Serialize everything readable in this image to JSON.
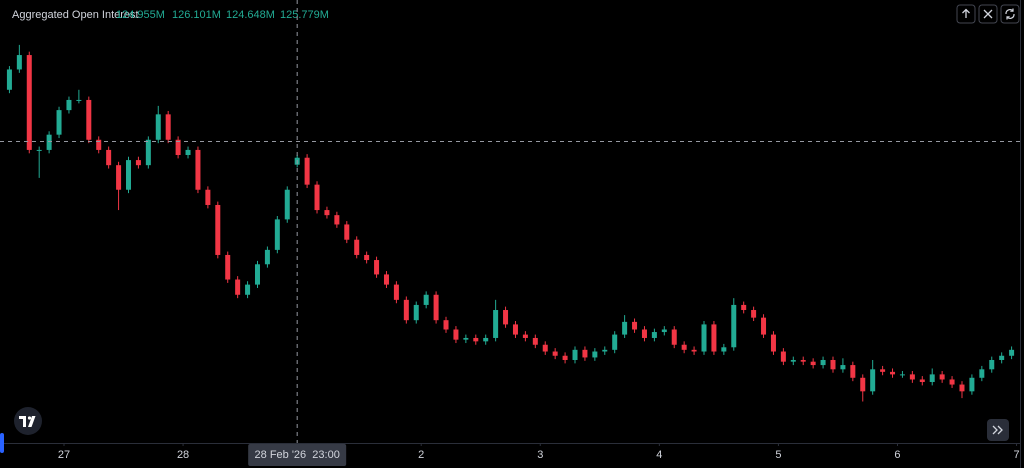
{
  "chart_data": {
    "type": "candlestick",
    "title": "Aggregated Open Interest",
    "readout_labels": [
      "124.955M",
      "126.101M",
      "124.648M",
      "125.779M"
    ],
    "up_color": "#22ab94",
    "down_color": "#f23645",
    "x": [
      13,
      15,
      17,
      19,
      21,
      23,
      25,
      27,
      29,
      31,
      33,
      35,
      37,
      39,
      41,
      43,
      45,
      47,
      49,
      51,
      53,
      55,
      57,
      59,
      61,
      63,
      65,
      67,
      69,
      71,
      73,
      75,
      77,
      79,
      81,
      83,
      85,
      87,
      89,
      91,
      93,
      95,
      97,
      99,
      101,
      103,
      105,
      107,
      109,
      111,
      113,
      115,
      117,
      119,
      121,
      123,
      125,
      127,
      129,
      131,
      133,
      135,
      137,
      139,
      141,
      143,
      145,
      147,
      149,
      151,
      153,
      155,
      157,
      159,
      161,
      163,
      165,
      167,
      169,
      171,
      173,
      175,
      177,
      179,
      181,
      183,
      185,
      187,
      189,
      191,
      193,
      195,
      197,
      199,
      201,
      203,
      205,
      207,
      209,
      211,
      213,
      215
    ],
    "open": [
      133.8,
      136.2,
      137.9,
      126.7,
      126.7,
      128.5,
      131.4,
      132.6,
      132.6,
      127.9,
      126.7,
      124.9,
      122.0,
      125.5,
      124.9,
      127.9,
      130.9,
      127.9,
      126.1,
      126.7,
      122.0,
      120.2,
      114.3,
      111.4,
      109.6,
      110.8,
      113.2,
      114.9,
      118.5,
      124.955,
      125.779,
      122.6,
      119.6,
      119.0,
      117.9,
      116.1,
      114.3,
      113.7,
      112.0,
      110.8,
      109.0,
      106.6,
      108.4,
      109.6,
      106.6,
      105.5,
      104.3,
      104.5,
      104.1,
      104.5,
      107.8,
      106.1,
      104.9,
      104.5,
      103.7,
      102.9,
      102.4,
      101.9,
      103.1,
      102.2,
      102.9,
      103.1,
      104.9,
      106.4,
      105.5,
      104.5,
      105.2,
      105.5,
      103.7,
      103.1,
      102.9,
      106.1,
      102.9,
      103.4,
      108.4,
      107.8,
      106.9,
      104.9,
      102.9,
      101.7,
      101.9,
      101.7,
      101.3,
      101.9,
      100.8,
      101.3,
      99.8,
      98.2,
      100.8,
      100.5,
      100.2,
      100.2,
      99.6,
      99.3,
      100.2,
      99.6,
      99.0,
      98.2,
      99.8,
      100.8,
      101.9,
      102.4
    ],
    "high": [
      136.6,
      139.1,
      138.3,
      127.1,
      128.9,
      131.8,
      133.0,
      133.8,
      133.0,
      128.3,
      127.1,
      125.3,
      125.9,
      125.9,
      128.3,
      131.9,
      131.3,
      128.3,
      127.1,
      127.1,
      122.4,
      120.6,
      114.7,
      111.8,
      111.2,
      113.6,
      115.3,
      118.9,
      122.4,
      126.101,
      126.2,
      123.0,
      120.0,
      119.4,
      118.3,
      116.5,
      114.7,
      114.1,
      112.4,
      111.2,
      109.4,
      108.8,
      110.0,
      110.0,
      107.0,
      105.9,
      104.9,
      104.9,
      104.9,
      109.0,
      108.2,
      106.5,
      105.3,
      104.9,
      104.1,
      103.3,
      102.8,
      103.5,
      103.5,
      103.3,
      103.5,
      105.3,
      107.2,
      106.8,
      105.9,
      105.6,
      105.9,
      105.9,
      104.1,
      103.5,
      106.5,
      106.5,
      103.8,
      109.2,
      108.8,
      108.2,
      107.3,
      105.3,
      103.3,
      102.3,
      102.3,
      102.1,
      102.3,
      102.3,
      102.1,
      101.7,
      100.2,
      101.9,
      101.2,
      100.9,
      100.6,
      100.6,
      100.0,
      100.9,
      100.6,
      100.0,
      99.4,
      100.2,
      101.2,
      102.3,
      102.8,
      103.5
    ],
    "low": [
      133.4,
      135.8,
      126.3,
      123.4,
      126.3,
      128.1,
      131.0,
      132.2,
      127.5,
      126.3,
      124.5,
      119.6,
      121.6,
      124.5,
      124.5,
      127.5,
      127.5,
      125.7,
      125.7,
      121.6,
      119.8,
      113.9,
      111.0,
      109.2,
      109.2,
      110.4,
      112.8,
      114.5,
      118.1,
      124.648,
      122.2,
      119.2,
      118.6,
      117.5,
      115.7,
      113.9,
      113.3,
      111.6,
      110.4,
      108.6,
      106.2,
      106.2,
      108.0,
      106.2,
      105.1,
      103.9,
      103.9,
      103.7,
      103.7,
      104.1,
      105.7,
      104.5,
      104.1,
      103.3,
      102.5,
      102.0,
      101.5,
      101.5,
      101.8,
      101.8,
      102.5,
      102.7,
      104.5,
      105.1,
      104.1,
      104.1,
      104.8,
      103.3,
      102.7,
      102.5,
      102.5,
      102.5,
      102.5,
      103.0,
      107.4,
      106.5,
      104.5,
      102.5,
      101.3,
      101.3,
      101.3,
      100.9,
      100.9,
      100.4,
      100.4,
      99.4,
      97.0,
      97.8,
      100.1,
      99.8,
      99.8,
      99.2,
      98.9,
      98.9,
      99.2,
      98.6,
      97.4,
      97.8,
      99.4,
      100.4,
      101.5,
      102.0
    ],
    "close": [
      136.2,
      137.9,
      126.7,
      126.7,
      128.5,
      131.4,
      132.6,
      132.6,
      127.9,
      126.7,
      124.9,
      122.0,
      125.5,
      124.9,
      127.9,
      130.9,
      127.9,
      126.1,
      126.7,
      122.0,
      120.2,
      114.3,
      111.4,
      109.6,
      110.8,
      113.2,
      114.9,
      118.5,
      122.0,
      125.779,
      122.6,
      119.6,
      119.0,
      117.9,
      116.1,
      114.3,
      113.7,
      112.0,
      110.8,
      109.0,
      106.6,
      108.4,
      109.6,
      106.6,
      105.5,
      104.3,
      104.5,
      104.1,
      104.5,
      107.8,
      106.1,
      104.9,
      104.5,
      103.7,
      102.9,
      102.4,
      101.9,
      103.1,
      102.2,
      102.9,
      103.1,
      104.9,
      106.4,
      105.5,
      104.5,
      105.2,
      105.5,
      103.7,
      103.1,
      102.9,
      106.1,
      102.9,
      103.4,
      108.4,
      107.8,
      106.9,
      104.9,
      102.9,
      101.7,
      101.9,
      101.7,
      101.3,
      101.9,
      100.8,
      101.3,
      99.8,
      98.2,
      100.8,
      100.5,
      100.2,
      100.2,
      99.6,
      99.3,
      100.2,
      99.6,
      99.0,
      98.2,
      99.8,
      100.8,
      101.9,
      102.4,
      103.1
    ],
    "xlim": [
      11.1,
      217.5
    ],
    "ylim": [
      92.1,
      144.4
    ],
    "xticks": [
      {
        "value": 24,
        "label": "27"
      },
      {
        "value": 48,
        "label": "28"
      },
      {
        "value": 96,
        "label": "2"
      },
      {
        "value": 120,
        "label": "3"
      },
      {
        "value": 144,
        "label": "4"
      },
      {
        "value": 168,
        "label": "5"
      },
      {
        "value": 192,
        "label": "6"
      },
      {
        "value": 216,
        "label": "7"
      }
    ],
    "crosshair": {
      "x": 71,
      "y": 127.7,
      "label": "28 Feb '26  23:00"
    }
  }
}
